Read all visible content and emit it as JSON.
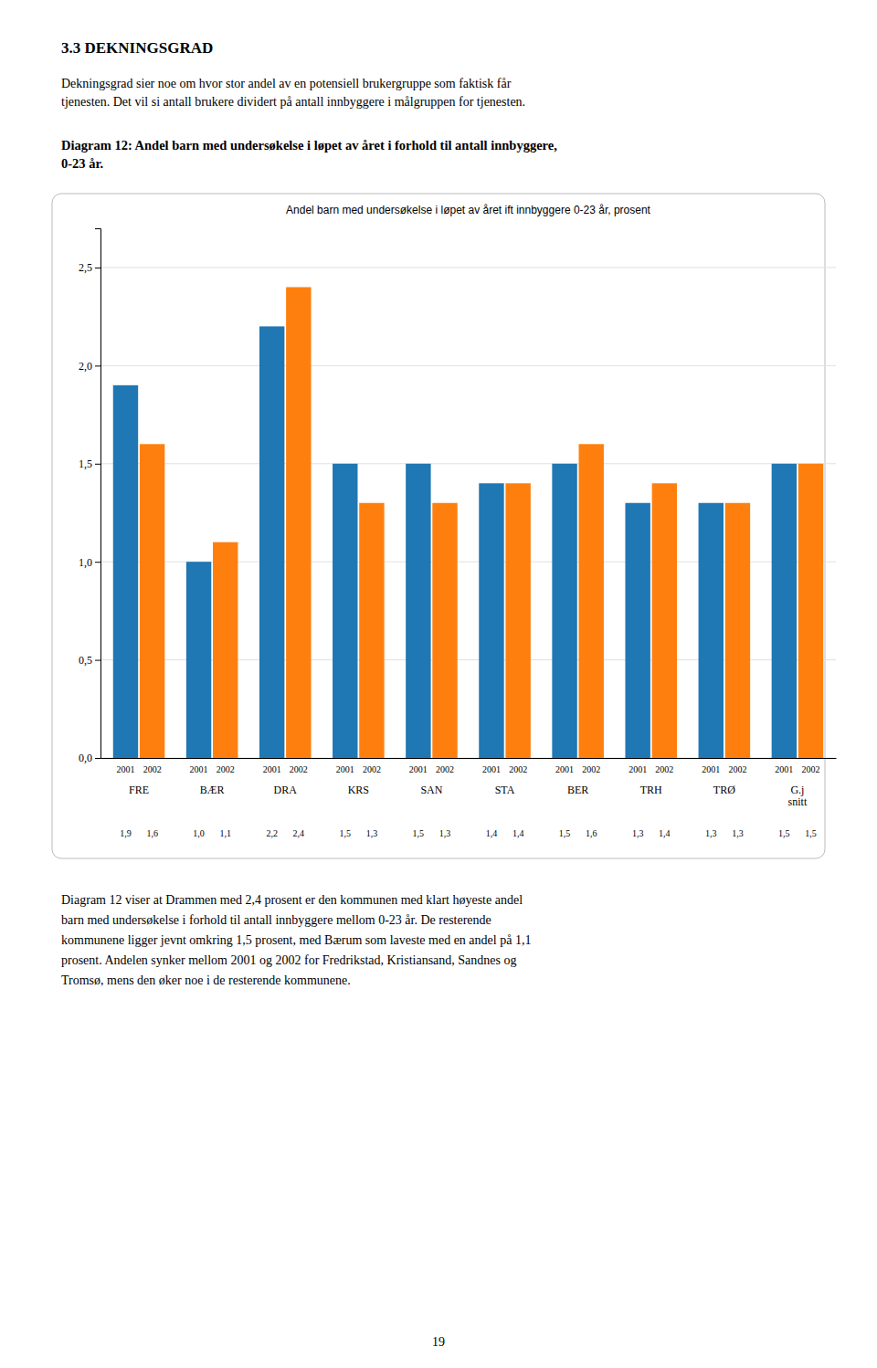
{
  "heading": "3.3   DEKNINGSGRAD",
  "para1": "Dekningsgrad sier noe om hvor stor andel av en potensiell brukergruppe som faktisk får\ntjenesten. Det vil si antall brukere dividert på antall innbyggere i målgruppen for tjenesten.",
  "diagram_label": "Diagram 12: Andel barn med undersøkelse i løpet av året i forhold til antall innbyggere,\n0-23 år.",
  "chart_data": {
    "type": "bar",
    "title": "Andel barn med undersøkelse i løpet av året ift innbyggere 0-23 år, prosent",
    "categories": [
      "FRE",
      "BÆR",
      "DRA",
      "KRS",
      "SAN",
      "STA",
      "BER",
      "TRH",
      "TRØ",
      "G.j\nsnitt"
    ],
    "series": [
      {
        "name": "2001",
        "values": [
          1.9,
          1.0,
          2.2,
          1.5,
          1.5,
          1.4,
          1.5,
          1.3,
          1.3,
          1.5
        ],
        "value_labels": [
          "1,9",
          "1,0",
          "2,2",
          "1,5",
          "1,5",
          "1,4",
          "1,5",
          "1,3",
          "1,3",
          "1,5"
        ]
      },
      {
        "name": "2002",
        "values": [
          1.6,
          1.1,
          2.4,
          1.3,
          1.3,
          1.4,
          1.6,
          1.4,
          1.3,
          1.5
        ],
        "value_labels": [
          "1,6",
          "1,1",
          "2,4",
          "1,3",
          "1,3",
          "1,4",
          "1,6",
          "1,4",
          "1,3",
          "1,5"
        ]
      }
    ],
    "ylim": [
      0.0,
      2.7
    ],
    "yticks": [
      {
        "value": 0.0,
        "label": "0,0"
      },
      {
        "value": 0.5,
        "label": "0,5"
      },
      {
        "value": 1.0,
        "label": "1,0"
      },
      {
        "value": 1.5,
        "label": "1,5"
      },
      {
        "value": 2.0,
        "label": "2,0"
      },
      {
        "value": 2.5,
        "label": "2,5"
      }
    ],
    "grid": true,
    "data_labels": true
  },
  "para2": "Diagram 12 viser at Drammen med 2,4 prosent er den kommunen med klart høyeste andel\nbarn med undersøkelse i forhold til antall innbyggere mellom 0-23 år. De resterende\nkommunene ligger jevnt omkring 1,5 prosent, med Bærum som laveste med en andel på 1,1\nprosent. Andelen synker mellom 2001 og 2002 for Fredrikstad, Kristiansand, Sandnes og\nTromsø, mens den øker noe i de resterende kommunene.",
  "page_number": "19"
}
